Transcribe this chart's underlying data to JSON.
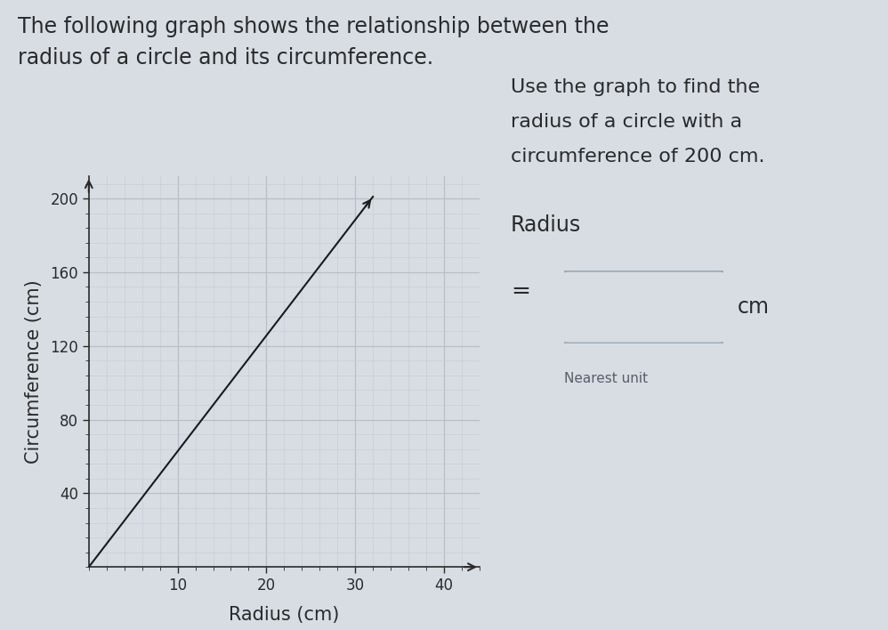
{
  "title_line1": "The following graph shows the relationship between the",
  "title_line2": "radius of a circle and its circumference.",
  "xlabel": "Radius (cm)",
  "ylabel": "Circumference (cm)",
  "x_ticks": [
    10,
    20,
    30,
    40
  ],
  "y_ticks": [
    40,
    80,
    120,
    160,
    200
  ],
  "xlim": [
    0,
    44
  ],
  "ylim": [
    0,
    212
  ],
  "line_x": [
    0,
    32
  ],
  "line_y": [
    0,
    201
  ],
  "bg_color": "#d8dde4",
  "plot_bg_color": "#d8dde4",
  "grid_major_color": "#b8bec8",
  "grid_minor_color": "#c8ced8",
  "line_color": "#1a1a1a",
  "text_color": "#2a2a2a",
  "side_text_line1": "Use the graph to find the",
  "side_text_line2": "radius of a circle with a",
  "side_text_line3": "circumference of 200 cm.",
  "side_label": "Radius",
  "side_equals": "=",
  "side_unit": "cm",
  "side_subtext": "Nearest unit",
  "title_fontsize": 17,
  "axis_label_fontsize": 15,
  "tick_fontsize": 12,
  "side_text_fontsize": 16,
  "side_label_fontsize": 17,
  "minor_x_spacing": 2,
  "minor_y_spacing": 8
}
